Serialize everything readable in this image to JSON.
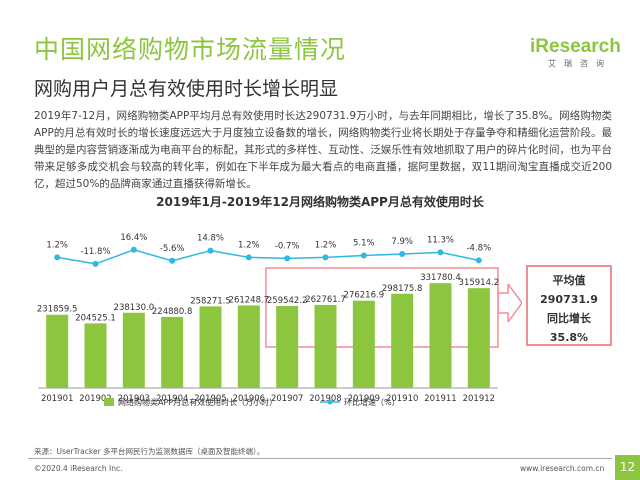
{
  "header": {
    "title": "中国网络购物市场流量情况",
    "subtitle": "网购用户月总有效使用时长增长明显"
  },
  "logo": {
    "main": "iResearch",
    "sub": "艾瑞咨询"
  },
  "paragraph": "2019年7-12月，网络购物类APP平均月总有效使用时长达290731.9万小时，与去年同期相比，增长了35.8%。网络购物类APP的月总有效时长的增长速度远远大于月度独立设备数的增长，网络购物类行业将长期处于存量争夺和精细化运营阶段。最典型的是内容营销逐渐成为电商平台的标配，其形式的多样性、互动性、泛娱乐性有效地抓取了用户的碎片化时间，也为平台带来足够多成交机会与较高的转化率，例如在下半年成为最大看点的电商直播，据阿里数据，双11期间淘宝直播成交近200亿，超过50%的品牌商家通过直播获得新增长。",
  "callout": {
    "line1": "平均值",
    "line2": "290731.9",
    "line3": "同比增长",
    "line4": "35.8%"
  },
  "source": "来源：UserTracker 多平台网民行为监测数据库（桌面及智能终端）。",
  "footer": {
    "copyright": "©2020.4 iResearch Inc.",
    "url": "www.iresearch.com.cn",
    "page": "12"
  },
  "colors": {
    "accent": "#8cc63f",
    "bar": "#8cc63f",
    "line": "#2fb8e6",
    "highlight": "#f28e93"
  },
  "chart_data": {
    "type": "bar",
    "title": "2019年1月-2019年12月网络购物类APP月总有效使用时长",
    "categories": [
      "201901",
      "201902",
      "201903",
      "201904",
      "201905",
      "201906",
      "201907",
      "201908",
      "201909",
      "201910",
      "201911",
      "201912"
    ],
    "series": [
      {
        "name": "网络购物类APP月总有效使用时长（万小时）",
        "type": "bar",
        "values": [
          231859.5,
          204525.1,
          238130.0,
          224880.8,
          258271.5,
          261248.7,
          259542.2,
          262761.7,
          276216.9,
          298175.8,
          331780.4,
          315914.2
        ],
        "labels": [
          "231859.5",
          "204525.1",
          "238130.0",
          "224880.8",
          "258271.5",
          "261248.7",
          "259542.2",
          "262761.7",
          "276216.9",
          "298175.8",
          "331780.4",
          "315914.2"
        ]
      },
      {
        "name": "环比增速（%）",
        "type": "line",
        "values": [
          1.2,
          -11.8,
          16.4,
          -5.6,
          14.8,
          1.2,
          -0.7,
          1.2,
          5.1,
          7.9,
          11.3,
          -4.8
        ],
        "labels": [
          "1.2%",
          "-11.8%",
          "16.4%",
          "-5.6%",
          "14.8%",
          "1.2%",
          "-0.7%",
          "1.2%",
          "5.1%",
          "7.9%",
          "11.3%",
          "-4.8%"
        ]
      }
    ],
    "highlight_range": [
      "201907",
      "201912"
    ],
    "legend_placement": "bottom"
  }
}
